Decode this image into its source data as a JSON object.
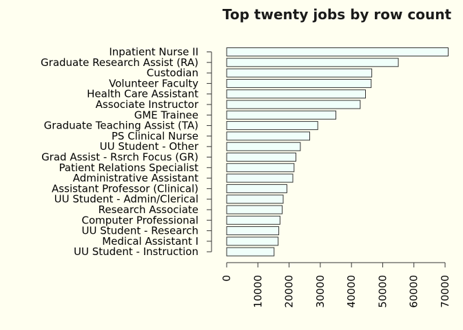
{
  "chart_data": {
    "type": "bar",
    "orientation": "horizontal",
    "title": "Top twenty jobs by row count",
    "xlabel": "",
    "ylabel": "",
    "xlim": [
      0,
      70000
    ],
    "xticks": [
      "0",
      "10000",
      "20000",
      "30000",
      "40000",
      "50000",
      "60000",
      "70000"
    ],
    "categories": [
      "Inpatient Nurse II",
      "Graduate Research Assist (RA)",
      "Custodian",
      "Volunteer Faculty",
      "Health Care Assistant",
      "Associate Instructor",
      "GME Trainee",
      "Graduate Teaching Assist (TA)",
      "PS Clinical Nurse",
      "UU Student - Other",
      "Grad Assist - Rsrch Focus (GR)",
      "Patient Relations Specialist",
      "Administrative Assistant",
      "Assistant Professor (Clinical)",
      "UU Student - Admin/Clerical",
      "Research Associate",
      "Computer Professional",
      "UU Student - Research",
      "Medical Assistant I",
      "UU Student - Instruction"
    ],
    "values": [
      71000,
      55000,
      46500,
      46300,
      44500,
      42800,
      35000,
      29200,
      26600,
      23600,
      22200,
      21600,
      21200,
      19300,
      18100,
      17800,
      17100,
      16700,
      16500,
      15200
    ],
    "grid": false,
    "legend": "none",
    "colors": {
      "bar_fill": "#f0fffa",
      "bar_stroke": "#333333",
      "background": "#fffff0"
    }
  }
}
